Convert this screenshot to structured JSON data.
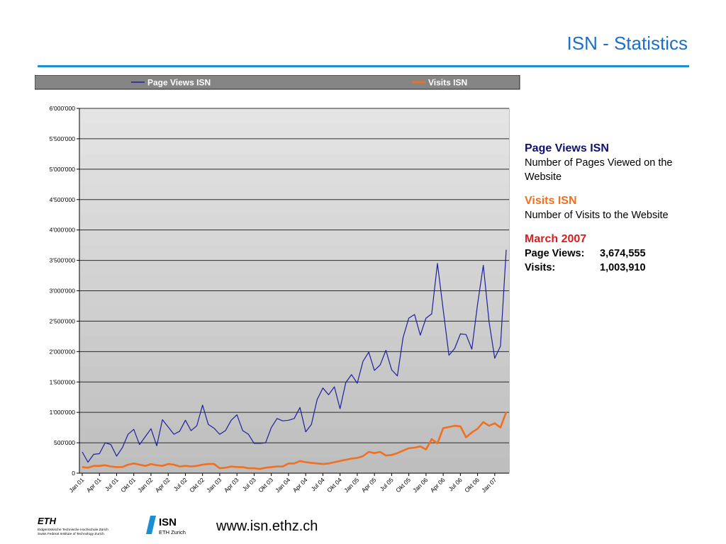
{
  "page": {
    "title": "ISN - Statistics",
    "url": "www.isn.ethz.ch"
  },
  "logos": {
    "eth_word": "ETH",
    "eth_line1": "Eidgenössische Technische Hochschule Zürich",
    "eth_line2": "Swiss Federal Institute of Technology Zurich",
    "isn_word": "ISN",
    "isn_sub": "ETH Zurich"
  },
  "description": {
    "pv_head": "Page Views ISN",
    "pv_text": "Number of Pages Viewed on the Website",
    "visits_head": "Visits ISN",
    "visits_text": "Number of Visits to the Website",
    "month_head": "March 2007",
    "pv_label": "Page Views:",
    "pv_value": "3,674,555",
    "visits_label": "Visits:",
    "visits_value": "1,003,910"
  },
  "colors": {
    "page_views": "#1f1f9e",
    "visits": "#f07020",
    "title": "#1a6fc9",
    "march_head": "#d81e1e",
    "pv_head": "#10106e"
  },
  "chart_data": {
    "type": "line",
    "legend_position": "top",
    "grid": true,
    "ylim": [
      0,
      6000000
    ],
    "y_ticks": [
      "0",
      "500'000",
      "1'000'000",
      "1'500'000",
      "2'000'000",
      "2'500'000",
      "3'000'000",
      "3'500'000",
      "4'000'000",
      "4'500'000",
      "5'000'000",
      "5'500'000",
      "6'000'000"
    ],
    "x_tick_labels": [
      "Jan 01",
      "Apr 01",
      "Jul 01",
      "Okt 01",
      "Jan 02",
      "Apr 02",
      "Jul 02",
      "Okt 02",
      "Jan 03",
      "Apr 03",
      "Jul 03",
      "Okt 03",
      "Jan 04",
      "Apr 04",
      "Jul 04",
      "Okt 04",
      "Jan 05",
      "Apr 05",
      "Jul 05",
      "Okt 05",
      "Jan 06",
      "Apr 06",
      "Jul 06",
      "Okt 06",
      "Jan 07"
    ],
    "x_tick_every": 3,
    "series": [
      {
        "name": "Page Views ISN",
        "values": [
          350000,
          180000,
          310000,
          320000,
          500000,
          470000,
          280000,
          420000,
          640000,
          720000,
          470000,
          600000,
          730000,
          450000,
          880000,
          760000,
          640000,
          690000,
          870000,
          700000,
          780000,
          1120000,
          800000,
          740000,
          640000,
          700000,
          870000,
          960000,
          700000,
          640000,
          490000,
          490000,
          500000,
          750000,
          900000,
          860000,
          870000,
          900000,
          1080000,
          680000,
          800000,
          1210000,
          1400000,
          1290000,
          1420000,
          1060000,
          1490000,
          1620000,
          1480000,
          1840000,
          1990000,
          1690000,
          1780000,
          2020000,
          1700000,
          1600000,
          2230000,
          2550000,
          2610000,
          2270000,
          2550000,
          2620000,
          3450000,
          2690000,
          1940000,
          2050000,
          2290000,
          2280000,
          2040000,
          2780000,
          3420000,
          2490000,
          1890000,
          2090000,
          3674555
        ]
      },
      {
        "name": "Visits ISN",
        "values": [
          100000,
          90000,
          120000,
          120000,
          130000,
          110000,
          100000,
          100000,
          140000,
          160000,
          140000,
          120000,
          150000,
          130000,
          120000,
          150000,
          140000,
          110000,
          120000,
          110000,
          120000,
          140000,
          150000,
          150000,
          80000,
          90000,
          110000,
          100000,
          100000,
          80000,
          80000,
          70000,
          90000,
          100000,
          110000,
          110000,
          160000,
          160000,
          200000,
          180000,
          170000,
          160000,
          150000,
          160000,
          180000,
          200000,
          220000,
          240000,
          250000,
          280000,
          350000,
          330000,
          350000,
          290000,
          300000,
          330000,
          370000,
          410000,
          420000,
          440000,
          390000,
          560000,
          490000,
          740000,
          760000,
          780000,
          770000,
          590000,
          670000,
          730000,
          840000,
          780000,
          820000,
          750000,
          1003910
        ]
      }
    ]
  }
}
